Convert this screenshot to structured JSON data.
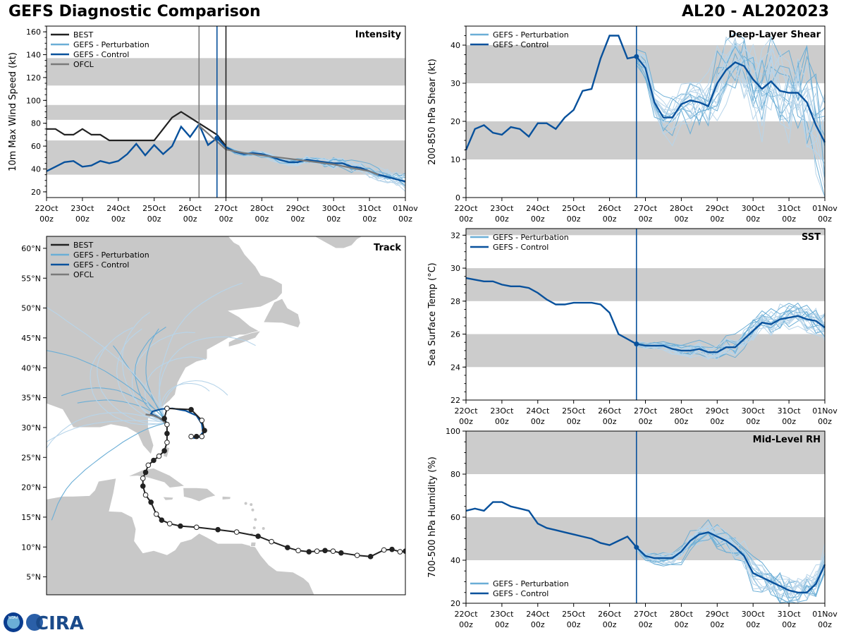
{
  "header": {
    "left_title": "GEFS Diagnostic Comparison",
    "right_title": "AL20 - AL202023"
  },
  "logo": {
    "text": "CIRA",
    "noaa_text": "NOAA"
  },
  "colors": {
    "best": "#222222",
    "perturbation": "#6baed6",
    "perturbation_light": "#b8d5ea",
    "control": "#08519c",
    "ofcl": "#7a7a7a",
    "band": "#cccccc",
    "land": "#c8c8c8"
  },
  "time_axis": {
    "labels": [
      "22Oct\n00z",
      "23Oct\n00z",
      "24Oct\n00z",
      "25Oct\n00z",
      "26Oct\n00z",
      "27Oct\n00z",
      "28Oct\n00z",
      "29Oct\n00z",
      "30Oct\n00z",
      "31Oct\n00z",
      "01Nov\n00z"
    ],
    "range_days": [
      0,
      10
    ],
    "analysis_time_day": 4.75
  },
  "chart_data": [
    {
      "id": "intensity",
      "type": "line",
      "title": "Intensity",
      "ylabel": "10m Max Wind Speed (kt)",
      "ylim": [
        15,
        165
      ],
      "yticks": [
        20,
        40,
        60,
        80,
        100,
        120,
        140,
        160
      ],
      "bands": [
        [
          35,
          65
        ],
        [
          83,
          96
        ],
        [
          113,
          137
        ]
      ],
      "vlines": [
        {
          "x": 4.25,
          "color": "ofcl"
        },
        {
          "x": 4.75,
          "color": "control"
        },
        {
          "x": 5.0,
          "color": "best"
        }
      ],
      "legend": [
        "BEST",
        "GEFS - Perturbation",
        "GEFS - Control",
        "OFCL"
      ],
      "series": [
        {
          "name": "BEST",
          "color": "best",
          "x": [
            0,
            0.25,
            0.5,
            0.75,
            1,
            1.25,
            1.5,
            1.75,
            2,
            2.25,
            2.5,
            2.75,
            3,
            3.25,
            3.5,
            3.75,
            4,
            4.25,
            4.5,
            4.75,
            5
          ],
          "values": [
            75,
            75,
            70,
            70,
            75,
            70,
            70,
            65,
            65,
            65,
            65,
            65,
            65,
            75,
            85,
            90,
            85,
            80,
            75,
            70,
            60
          ]
        },
        {
          "name": "GEFS - Control",
          "color": "control",
          "x": [
            0,
            0.25,
            0.5,
            0.75,
            1,
            1.25,
            1.5,
            1.75,
            2,
            2.25,
            2.5,
            2.75,
            3,
            3.25,
            3.5,
            3.75,
            4,
            4.25,
            4.5,
            4.75,
            5,
            5.25,
            5.5,
            5.75,
            6,
            6.25,
            6.5,
            6.75,
            7,
            7.25,
            7.5,
            7.75,
            8,
            8.25,
            8.5,
            8.75,
            9,
            9.25,
            9.5,
            9.75,
            10
          ],
          "values": [
            38,
            42,
            46,
            47,
            42,
            43,
            47,
            45,
            47,
            53,
            62,
            52,
            61,
            53,
            60,
            77,
            68,
            79,
            61,
            67,
            59,
            55,
            53,
            54,
            53,
            51,
            48,
            46,
            46,
            48,
            47,
            46,
            45,
            45,
            42,
            41,
            38,
            35,
            33,
            31,
            29
          ]
        },
        {
          "name": "OFCL",
          "color": "ofcl",
          "x": [
            4.25,
            4.5,
            5,
            5.5,
            6,
            6.5,
            7,
            7.5,
            8,
            8.5,
            9,
            9.25
          ],
          "values": [
            78,
            71,
            57,
            54,
            52,
            50,
            48,
            46,
            44,
            41,
            38,
            35
          ]
        }
      ],
      "perturbation_count": 20
    },
    {
      "id": "shear",
      "type": "line",
      "title": "Deep-Layer Shear",
      "ylabel": "200-850 hPa Shear (kt)",
      "ylim": [
        0,
        45
      ],
      "yticks": [
        0,
        10,
        20,
        30,
        40
      ],
      "bands": [
        [
          10,
          20
        ],
        [
          30,
          40
        ]
      ],
      "vlines": [
        {
          "x": 4.75,
          "color": "control"
        }
      ],
      "legend": [
        "GEFS - Perturbation",
        "GEFS - Control"
      ],
      "series": [
        {
          "name": "GEFS - Control",
          "color": "control",
          "x": [
            0,
            0.25,
            0.5,
            0.75,
            1,
            1.25,
            1.5,
            1.75,
            2,
            2.25,
            2.5,
            2.75,
            3,
            3.25,
            3.5,
            3.75,
            4,
            4.25,
            4.5,
            4.75,
            5,
            5.25,
            5.5,
            5.75,
            6,
            6.25,
            6.5,
            6.75,
            7,
            7.25,
            7.5,
            7.75,
            8,
            8.25,
            8.5,
            8.75,
            9,
            9.25,
            9.5,
            9.75,
            10
          ],
          "values": [
            12.5,
            18,
            19,
            17,
            16.5,
            18.5,
            18,
            16,
            19.5,
            19.5,
            18,
            21,
            23,
            28,
            28.5,
            36.5,
            42.5,
            42.5,
            36.5,
            37,
            34,
            25,
            21,
            21,
            24.5,
            25.5,
            25,
            24,
            30,
            33.5,
            35.5,
            34.5,
            31,
            28.5,
            30.5,
            28,
            27.5,
            27.5,
            25,
            19,
            14.5
          ]
        }
      ],
      "perturbation_count": 20
    },
    {
      "id": "sst",
      "type": "line",
      "title": "SST",
      "ylabel": "Sea Surface Temp (°C)",
      "ylim": [
        22,
        32.4
      ],
      "yticks": [
        22,
        24,
        26,
        28,
        30,
        32
      ],
      "bands": [
        [
          24,
          26
        ],
        [
          28,
          30
        ],
        [
          32,
          32.4
        ]
      ],
      "vlines": [
        {
          "x": 4.75,
          "color": "control"
        }
      ],
      "legend": [
        "GEFS - Perturbation",
        "GEFS - Control"
      ],
      "series": [
        {
          "name": "GEFS - Control",
          "color": "control",
          "x": [
            0,
            0.25,
            0.5,
            0.75,
            1,
            1.25,
            1.5,
            1.75,
            2,
            2.25,
            2.5,
            2.75,
            3,
            3.25,
            3.5,
            3.75,
            4,
            4.25,
            4.5,
            4.75,
            5,
            5.25,
            5.5,
            5.75,
            6,
            6.25,
            6.5,
            6.75,
            7,
            7.25,
            7.5,
            7.75,
            8,
            8.25,
            8.5,
            8.75,
            9,
            9.25,
            9.5,
            9.75,
            10
          ],
          "values": [
            29.4,
            29.3,
            29.2,
            29.2,
            29.0,
            28.9,
            28.9,
            28.8,
            28.5,
            28.1,
            27.8,
            27.8,
            27.9,
            27.9,
            27.9,
            27.8,
            27.3,
            26.0,
            25.7,
            25.4,
            25.3,
            25.3,
            25.3,
            25.1,
            25.0,
            25.0,
            25.1,
            24.9,
            24.9,
            25.2,
            25.2,
            25.7,
            26.2,
            26.7,
            26.6,
            26.9,
            27.0,
            27.1,
            26.9,
            26.8,
            26.4
          ]
        }
      ],
      "perturbation_count": 20
    },
    {
      "id": "rh",
      "type": "line",
      "title": "Mid-Level RH",
      "ylabel": "700-500 hPa Humidity (%)",
      "ylim": [
        20,
        100
      ],
      "yticks": [
        20,
        40,
        60,
        80,
        100
      ],
      "bands": [
        [
          40,
          60
        ],
        [
          80,
          100
        ]
      ],
      "vlines": [
        {
          "x": 4.75,
          "color": "control"
        }
      ],
      "legend": [
        "GEFS - Perturbation",
        "GEFS - Control"
      ],
      "series": [
        {
          "name": "GEFS - Control",
          "color": "control",
          "x": [
            0,
            0.25,
            0.5,
            0.75,
            1,
            1.25,
            1.5,
            1.75,
            2,
            2.25,
            2.5,
            2.75,
            3,
            3.25,
            3.5,
            3.75,
            4,
            4.25,
            4.5,
            4.75,
            5,
            5.25,
            5.5,
            5.75,
            6,
            6.25,
            6.5,
            6.75,
            7,
            7.25,
            7.5,
            7.75,
            8,
            8.25,
            8.5,
            8.75,
            9,
            9.25,
            9.5,
            9.75,
            10
          ],
          "values": [
            63,
            64,
            63,
            67,
            67,
            65,
            64,
            63,
            57,
            55,
            54,
            53,
            52,
            51,
            50,
            48,
            47,
            49,
            51,
            46,
            42,
            41,
            41,
            41,
            44,
            49,
            52,
            53,
            51,
            49,
            46,
            42,
            34,
            32,
            30,
            28,
            26,
            25,
            25,
            29,
            38
          ]
        }
      ],
      "perturbation_count": 20
    },
    {
      "id": "track",
      "type": "scatter",
      "title": "Track",
      "xlim": [
        -100,
        -33
      ],
      "ylim": [
        2,
        62
      ],
      "yticks": [
        5,
        10,
        15,
        20,
        25,
        30,
        35,
        40,
        45,
        50,
        55,
        60
      ],
      "ytick_labels": [
        "5°N",
        "10°N",
        "15°N",
        "20°N",
        "25°N",
        "30°N",
        "35°N",
        "40°N",
        "45°N",
        "50°N",
        "55°N",
        "60°N"
      ],
      "legend": [
        "BEST",
        "GEFS - Perturbation",
        "GEFS - Control",
        "OFCL"
      ],
      "best_track": [
        [
          -33,
          9.3
        ],
        [
          -34,
          9.2
        ],
        [
          -35.5,
          9.6
        ],
        [
          -37,
          9.5
        ],
        [
          -39.5,
          8.4
        ],
        [
          -42,
          8.6
        ],
        [
          -45,
          9.0
        ],
        [
          -46.5,
          9.3
        ],
        [
          -48,
          9.4
        ],
        [
          -49.5,
          9.3
        ],
        [
          -51,
          9.2
        ],
        [
          -53,
          9.4
        ],
        [
          -55,
          9.9
        ],
        [
          -58,
          10.9
        ],
        [
          -60.5,
          11.8
        ],
        [
          -64.5,
          12.5
        ],
        [
          -68,
          12.9
        ],
        [
          -72,
          13.3
        ],
        [
          -75,
          13.5
        ],
        [
          -77,
          13.9
        ],
        [
          -78.5,
          14.5
        ],
        [
          -79.5,
          15.5
        ],
        [
          -80.5,
          17.5
        ],
        [
          -81.5,
          18.7
        ],
        [
          -82,
          20.2
        ],
        [
          -82,
          21.5
        ],
        [
          -81.5,
          22.5
        ],
        [
          -81,
          23.7
        ],
        [
          -80,
          24.5
        ],
        [
          -79,
          25.2
        ],
        [
          -78,
          26.1
        ],
        [
          -77.5,
          27.5
        ],
        [
          -77.5,
          29
        ],
        [
          -77.5,
          30.5
        ],
        [
          -78,
          31.5
        ],
        [
          -77.5,
          33.2
        ],
        [
          -73,
          33
        ],
        [
          -71,
          31.2
        ],
        [
          -70.5,
          29.5
        ],
        [
          -71,
          28.5
        ],
        [
          -72,
          28.5
        ],
        [
          -73,
          28.5
        ]
      ],
      "control_track": [
        [
          -77.5,
          30.8
        ],
        [
          -78.5,
          31.3
        ],
        [
          -79.5,
          31.9
        ],
        [
          -80.5,
          32.3
        ],
        [
          -80.2,
          32.7
        ],
        [
          -78.5,
          33.1
        ],
        [
          -76.5,
          33.2
        ],
        [
          -74,
          32.8
        ],
        [
          -72,
          32.0
        ],
        [
          -71,
          30.6
        ],
        [
          -70.8,
          29.2
        ],
        [
          -71.5,
          28.4
        ],
        [
          -72.6,
          28.2
        ]
      ],
      "ofcl_track": [
        [
          -77.5,
          30.4
        ],
        [
          -78.5,
          31.4
        ],
        [
          -80,
          32.0
        ],
        [
          -81.5,
          32.2
        ]
      ],
      "perturbation_count": 20
    }
  ]
}
